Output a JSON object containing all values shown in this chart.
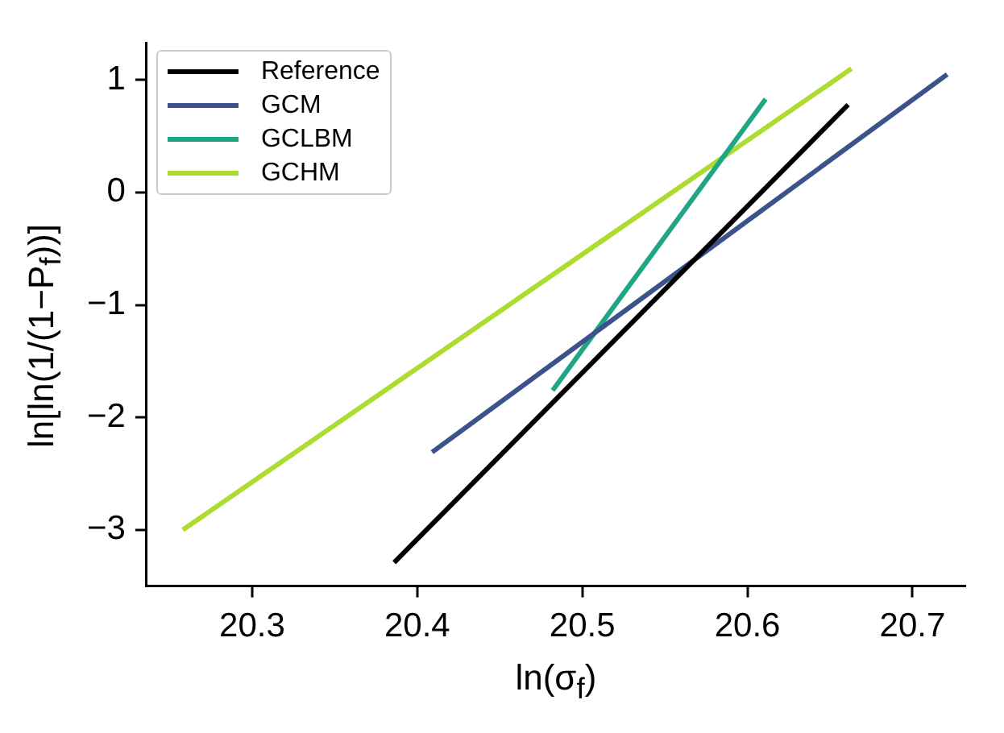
{
  "chart_data": {
    "type": "line",
    "xlabel": "ln(σ$_{f}$)",
    "ylabel": "ln[ln(1/(1−P$_{f}$))]",
    "series": [
      {
        "name": "Reference",
        "color": "#000000",
        "x": [
          20.386,
          20.661
        ],
        "values": [
          -3.29,
          0.78
        ]
      },
      {
        "name": "GCM",
        "color": "#3b528b",
        "x": [
          20.409,
          20.721
        ],
        "values": [
          -2.31,
          1.05
        ]
      },
      {
        "name": "GCLBM",
        "color": "#21a585",
        "x": [
          20.482,
          20.611
        ],
        "values": [
          -1.76,
          0.83
        ]
      },
      {
        "name": "GCHM",
        "color": "#addc30",
        "x": [
          20.258,
          20.663
        ],
        "values": [
          -3.0,
          1.1
        ]
      }
    ],
    "xlim": [
      20.236,
      20.732
    ],
    "ylim": [
      -3.5,
      1.33
    ],
    "xticks": [
      20.3,
      20.4,
      20.5,
      20.6,
      20.7
    ],
    "yticks": [
      -3,
      -2,
      -1,
      0,
      1
    ],
    "grid": false,
    "legend": "top left",
    "marker": "none",
    "line_style": "solid"
  }
}
